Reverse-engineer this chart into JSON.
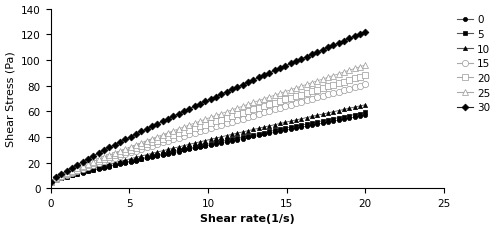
{
  "xlabel": "Shear rate(1/s)",
  "ylabel": "Shear Stress (Pa)",
  "xlim": [
    0,
    25
  ],
  "ylim": [
    0,
    140
  ],
  "xticks": [
    0,
    5,
    10,
    15,
    20,
    25
  ],
  "yticks": [
    0,
    20,
    40,
    60,
    80,
    100,
    120,
    140
  ],
  "series": [
    {
      "label": "0",
      "endpoint": 57,
      "n": 0.88,
      "color": "#000000",
      "lcolor": "#555555",
      "marker": "o",
      "filled": true,
      "ms": 3.0
    },
    {
      "label": "5",
      "endpoint": 59,
      "n": 0.88,
      "color": "#000000",
      "lcolor": "#555555",
      "marker": "s",
      "filled": true,
      "ms": 3.0
    },
    {
      "label": "10",
      "endpoint": 65,
      "n": 0.88,
      "color": "#000000",
      "lcolor": "#555555",
      "marker": "^",
      "filled": true,
      "ms": 3.0
    },
    {
      "label": "15",
      "endpoint": 81,
      "n": 0.88,
      "color": "#999999",
      "lcolor": "#aaaaaa",
      "marker": "o",
      "filled": false,
      "ms": 4.5
    },
    {
      "label": "20",
      "endpoint": 88,
      "n": 0.88,
      "color": "#999999",
      "lcolor": "#aaaaaa",
      "marker": "s",
      "filled": false,
      "ms": 4.0
    },
    {
      "label": "25",
      "endpoint": 96,
      "n": 0.88,
      "color": "#999999",
      "lcolor": "#aaaaaa",
      "marker": "^",
      "filled": false,
      "ms": 4.0
    },
    {
      "label": "30",
      "endpoint": 122,
      "n": 0.88,
      "color": "#000000",
      "lcolor": "#222222",
      "marker": "D",
      "filled": true,
      "ms": 3.5
    }
  ],
  "figsize": [
    5.0,
    2.3
  ],
  "dpi": 100,
  "n_markers": 60,
  "y_intercept": 5.0
}
